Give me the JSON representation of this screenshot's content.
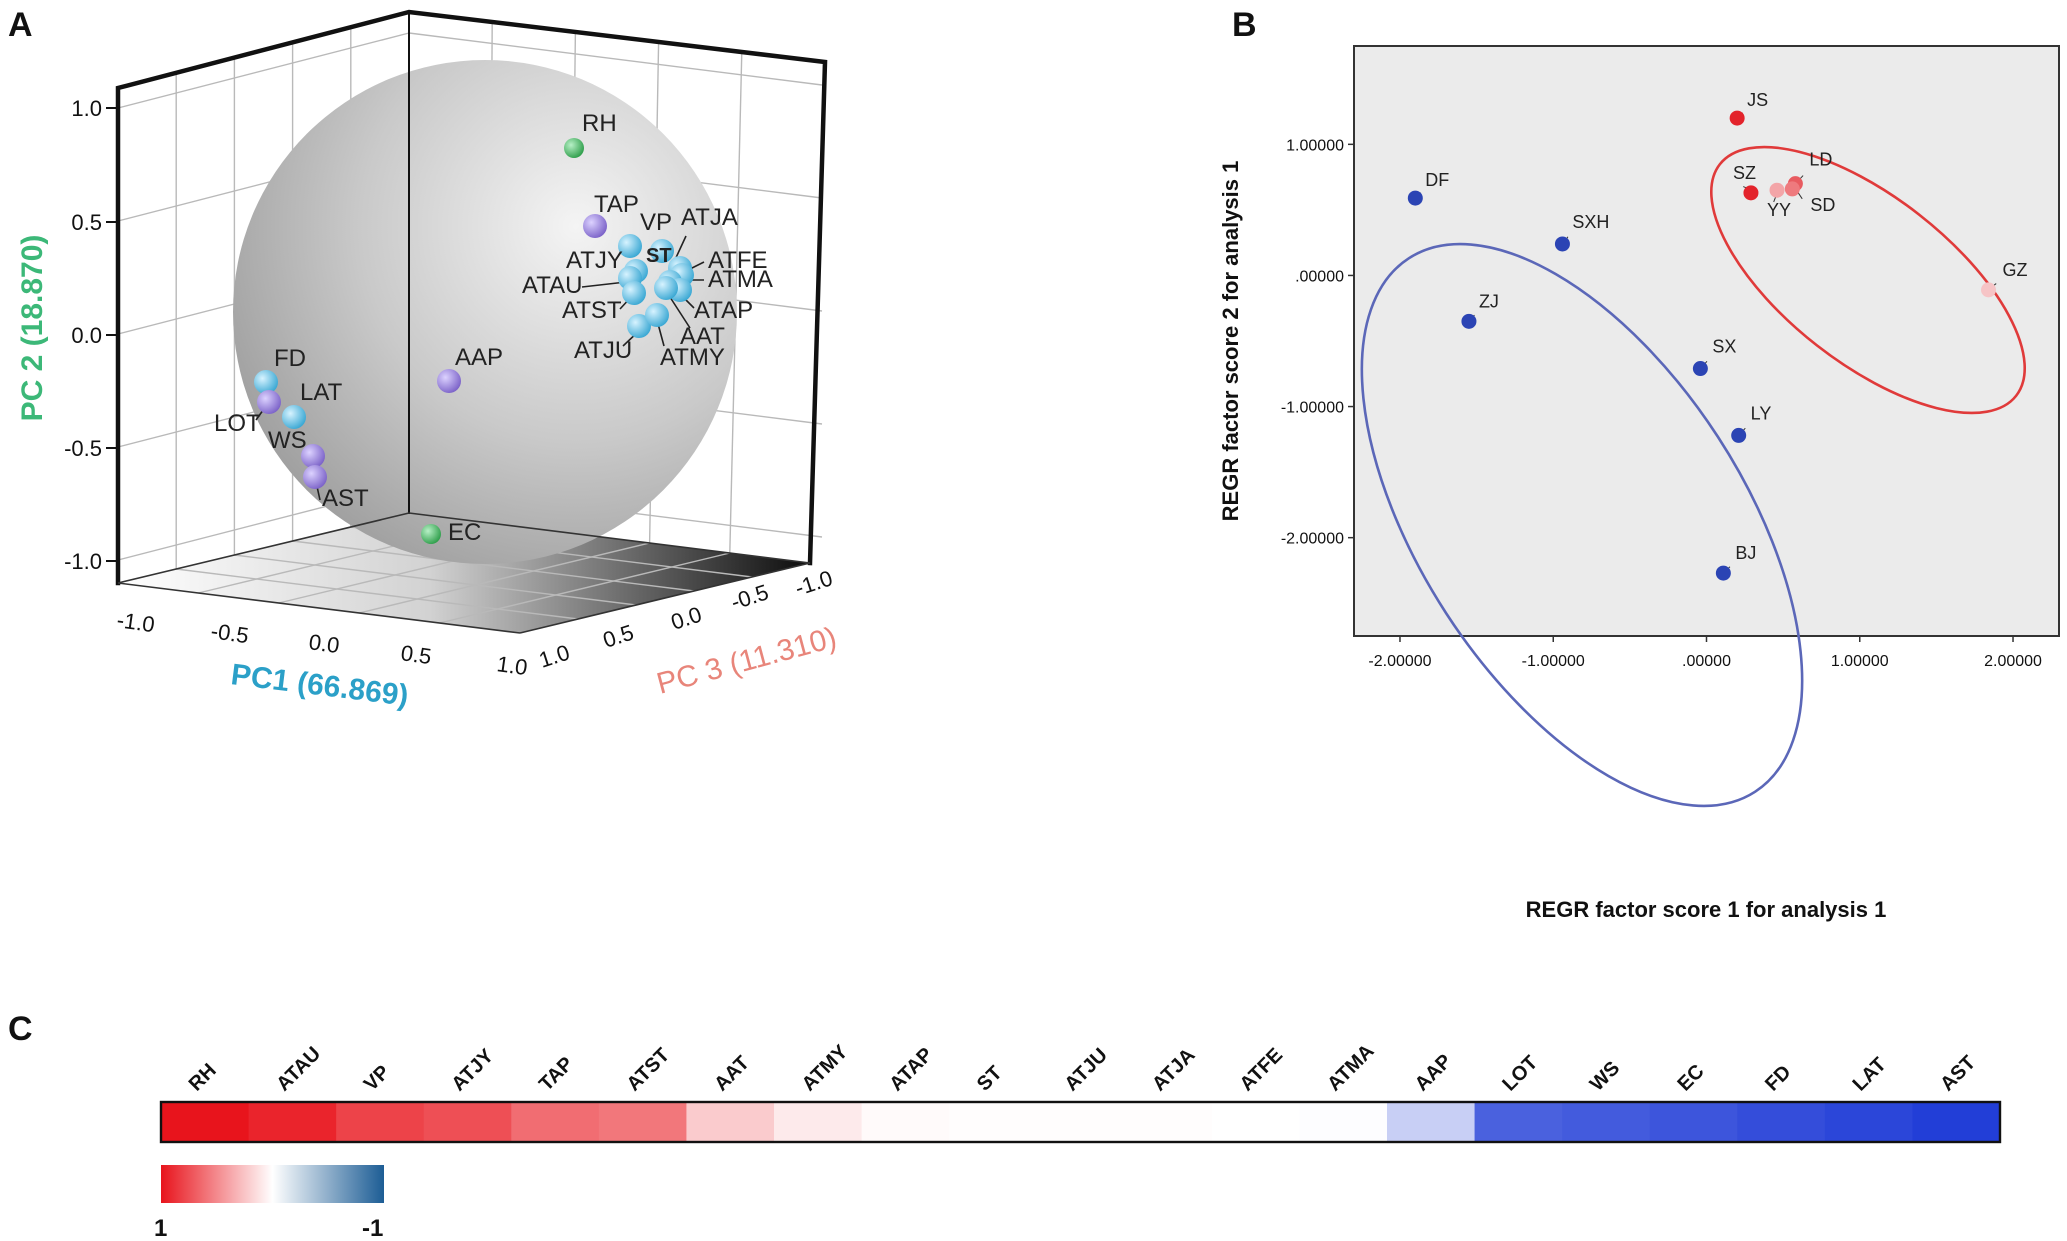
{
  "chart_data": [
    {
      "panel": "A",
      "type": "scatter",
      "subtype": "3d-pca-loadings",
      "axes": {
        "x": {
          "label": "PC1 (66.869)",
          "ticks": [
            "-1.0",
            "-0.5",
            "0.0",
            "0.5",
            "1.0"
          ],
          "range": [
            -1,
            1
          ],
          "color": "#2ba0c8"
        },
        "y": {
          "label": "PC 2 (18.870)",
          "ticks": [
            "1.0",
            "0.5",
            "0.0",
            "-0.5",
            "-1.0"
          ],
          "range": [
            -1,
            1
          ],
          "color": "#3cb878"
        },
        "z": {
          "label": "PC 3 (11.310)",
          "ticks": [
            "1.0",
            "0.5",
            "0.0",
            "-0.5",
            "-1.0"
          ],
          "range": [
            -1,
            1
          ],
          "color": "#e8857a"
        }
      },
      "groups": {
        "green": "#2e9e4a",
        "purple": "#7b62c8",
        "cyan": "#39a7d3"
      },
      "points": [
        {
          "label": "RH",
          "group": "green"
        },
        {
          "label": "TAP",
          "group": "purple"
        },
        {
          "label": "VP",
          "group": "cyan"
        },
        {
          "label": "ST",
          "group": "cyan"
        },
        {
          "label": "ATJA",
          "group": "cyan"
        },
        {
          "label": "ATJY",
          "group": "cyan"
        },
        {
          "label": "ATFE",
          "group": "cyan"
        },
        {
          "label": "ATMA",
          "group": "cyan"
        },
        {
          "label": "ATAU",
          "group": "cyan"
        },
        {
          "label": "ATST",
          "group": "cyan"
        },
        {
          "label": "ATAP",
          "group": "cyan"
        },
        {
          "label": "AAT",
          "group": "cyan"
        },
        {
          "label": "ATJU",
          "group": "cyan"
        },
        {
          "label": "ATMY",
          "group": "cyan"
        },
        {
          "label": "AAP",
          "group": "purple"
        },
        {
          "label": "FD",
          "group": "cyan"
        },
        {
          "label": "LAT",
          "group": "cyan"
        },
        {
          "label": "LOT",
          "group": "purple"
        },
        {
          "label": "WS",
          "group": "purple"
        },
        {
          "label": "AST",
          "group": "purple"
        },
        {
          "label": "EC",
          "group": "green"
        }
      ]
    },
    {
      "panel": "B",
      "type": "scatter",
      "xlabel": "REGR factor score   1 for analysis 1",
      "ylabel": "REGR factor score   2 for analysis 1",
      "xlim": [
        -2.3,
        2.3
      ],
      "ylim": [
        -2.75,
        1.75
      ],
      "xticks": [
        -2,
        -1,
        0,
        1,
        2
      ],
      "xtick_labels": [
        "-2.00000",
        "-1.00000",
        ".00000",
        "1.00000",
        "2.00000"
      ],
      "yticks": [
        1,
        0,
        -1,
        -2
      ],
      "ytick_labels": [
        "1.00000",
        ".00000",
        "-1.00000",
        "-2.00000"
      ],
      "points": [
        {
          "label": "JS",
          "x": 0.2,
          "y": 1.2,
          "color": "#e3232b"
        },
        {
          "label": "SZ",
          "x": 0.29,
          "y": 0.63,
          "color": "#e3232b"
        },
        {
          "label": "YY",
          "x": 0.46,
          "y": 0.65,
          "color": "#f3a5a8"
        },
        {
          "label": "LD",
          "x": 0.58,
          "y": 0.7,
          "color": "#e85b60"
        },
        {
          "label": "SD",
          "x": 0.56,
          "y": 0.66,
          "color": "#ee7a7e"
        },
        {
          "label": "GZ",
          "x": 1.84,
          "y": -0.11,
          "color": "#f6c4c6"
        },
        {
          "label": "DF",
          "x": -1.9,
          "y": 0.59,
          "color": "#2b44b4"
        },
        {
          "label": "SXH",
          "x": -0.94,
          "y": 0.24,
          "color": "#2b44b4"
        },
        {
          "label": "ZJ",
          "x": -1.55,
          "y": -0.35,
          "color": "#2b44b4"
        },
        {
          "label": "SX",
          "x": -0.04,
          "y": -0.71,
          "color": "#2b44b4"
        },
        {
          "label": "LY",
          "x": 0.21,
          "y": -1.22,
          "color": "#2b44b4"
        },
        {
          "label": "BJ",
          "x": 0.11,
          "y": -2.27,
          "color": "#2b44b4"
        }
      ]
    },
    {
      "panel": "C",
      "type": "heatmap",
      "categories": [
        "RH",
        "ATAU",
        "VP",
        "ATJY",
        "TAP",
        "ATST",
        "AAT",
        "ATMY",
        "ATAP",
        "ST",
        "ATJU",
        "ATJA",
        "ATFE",
        "ATMA",
        "AAP",
        "LOT",
        "WS",
        "EC",
        "FD",
        "LAT",
        "AST"
      ],
      "values": [
        1.0,
        0.93,
        0.8,
        0.75,
        0.62,
        0.58,
        0.22,
        0.09,
        0.02,
        0.01,
        0.01,
        0.01,
        0.0,
        -0.01,
        -0.25,
        -0.82,
        -0.85,
        -0.88,
        -0.92,
        -0.96,
        -1.0
      ],
      "legend": {
        "min_label": "-1",
        "max_label": "1"
      }
    }
  ],
  "panels": {
    "a": "A",
    "b": "B",
    "c": "C"
  }
}
